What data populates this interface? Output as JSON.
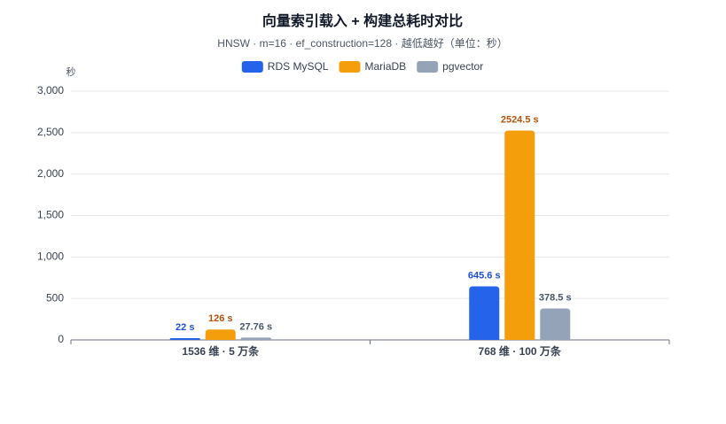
{
  "chart_data": {
    "type": "bar",
    "title": "向量索引载入 + 构建总耗时对比",
    "subtitle": "HNSW · m=16 · ef_construction=128 · 越低越好（单位：秒）",
    "y_label": "秒",
    "categories": [
      "1536 维 · 5 万条",
      "768 维 · 100 万条"
    ],
    "series": [
      {
        "name": "RDS MySQL",
        "color": "#2563eb",
        "label_color": "#1d4ed8",
        "values": [
          22,
          645.6
        ],
        "value_labels": [
          "22 s",
          "645.6 s"
        ]
      },
      {
        "name": "MariaDB",
        "color": "#f59e0b",
        "label_color": "#b45309",
        "values": [
          126,
          2524.5
        ],
        "value_labels": [
          "126 s",
          "2524.5 s"
        ]
      },
      {
        "name": "pgvector",
        "color": "#94a3b8",
        "label_color": "#475569",
        "values": [
          27.76,
          378.5
        ],
        "value_labels": [
          "27.76 s",
          "378.5 s"
        ]
      }
    ],
    "ylim": [
      0,
      3000
    ],
    "yticks": [
      0,
      500,
      {
        "value": 1000,
        "label": "1,000"
      },
      {
        "value": 1500,
        "label": "1,500"
      },
      {
        "value": 2000,
        "label": "2,000"
      },
      {
        "value": 2500,
        "label": "2,500"
      },
      {
        "value": 3000,
        "label": "3,000"
      }
    ],
    "grid": true,
    "legend": "top"
  }
}
